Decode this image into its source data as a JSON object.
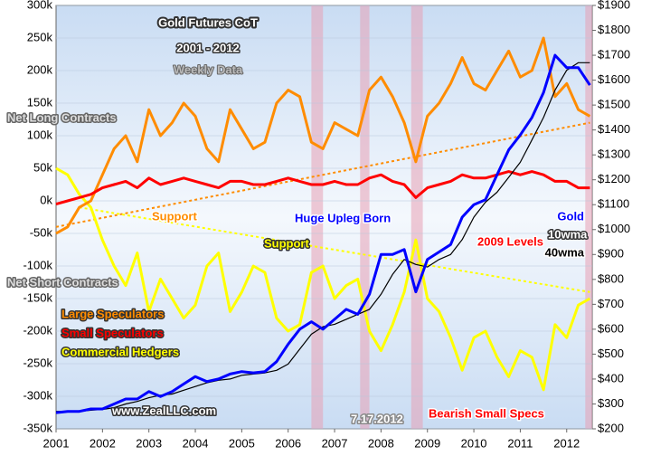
{
  "chart_data": {
    "type": "line",
    "title": "Gold Futures CoT",
    "subtitle": "2001 - 2012",
    "note": "Weekly Data",
    "annotations": [
      "Net Long Contracts",
      "Net Short Contracts",
      "Support",
      "Support",
      "Huge Upleg Born",
      "2009 Levels",
      "10wma",
      "www.ZealLLC.com",
      "7.17.2012",
      "Bearish Small Specs"
    ],
    "x": [
      2001,
      2001.25,
      2001.5,
      2001.75,
      2002,
      2002.25,
      2002.5,
      2002.75,
      2003,
      2003.25,
      2003.5,
      2003.75,
      2004,
      2004.25,
      2004.5,
      2004.75,
      2005,
      2005.25,
      2005.5,
      2005.75,
      2006,
      2006.25,
      2006.5,
      2006.75,
      2007,
      2007.25,
      2007.5,
      2007.75,
      2008,
      2008.25,
      2008.5,
      2008.75,
      2009,
      2009.25,
      2009.5,
      2009.75,
      2010,
      2010.25,
      2010.5,
      2010.75,
      2011,
      2011.25,
      2011.5,
      2011.75,
      2012,
      2012.25,
      2012.5
    ],
    "series": [
      {
        "name": "Large Speculators",
        "color": "#ff8c00",
        "values": [
          -50000,
          -40000,
          -10000,
          0,
          40000,
          80000,
          100000,
          60000,
          140000,
          100000,
          120000,
          150000,
          130000,
          80000,
          60000,
          140000,
          110000,
          80000,
          90000,
          150000,
          170000,
          160000,
          90000,
          80000,
          120000,
          110000,
          100000,
          170000,
          190000,
          160000,
          120000,
          60000,
          130000,
          150000,
          180000,
          220000,
          180000,
          170000,
          200000,
          230000,
          190000,
          200000,
          250000,
          160000,
          180000,
          140000,
          130000
        ]
      },
      {
        "name": "Small Speculators",
        "color": "#ff0000",
        "values": [
          -5000,
          0,
          5000,
          10000,
          20000,
          25000,
          30000,
          20000,
          35000,
          25000,
          30000,
          35000,
          30000,
          25000,
          20000,
          30000,
          30000,
          25000,
          25000,
          30000,
          35000,
          30000,
          25000,
          25000,
          30000,
          25000,
          25000,
          35000,
          40000,
          30000,
          25000,
          5000,
          20000,
          25000,
          30000,
          40000,
          35000,
          35000,
          40000,
          45000,
          40000,
          45000,
          40000,
          30000,
          30000,
          20000,
          20000
        ]
      },
      {
        "name": "Commercial Hedgers",
        "color": "#ffff00",
        "values": [
          50000,
          40000,
          10000,
          -10000,
          -60000,
          -100000,
          -130000,
          -80000,
          -170000,
          -120000,
          -150000,
          -180000,
          -160000,
          -100000,
          -80000,
          -170000,
          -140000,
          -100000,
          -110000,
          -180000,
          -200000,
          -190000,
          -110000,
          -100000,
          -150000,
          -130000,
          -120000,
          -200000,
          -230000,
          -190000,
          -140000,
          -60000,
          -150000,
          -170000,
          -210000,
          -260000,
          -210000,
          -200000,
          -240000,
          -270000,
          -230000,
          -240000,
          -290000,
          -190000,
          -210000,
          -160000,
          -150000
        ]
      },
      {
        "name": "Gold",
        "color": "#0000ff",
        "axis": "y2",
        "values": [
          265,
          270,
          270,
          280,
          280,
          300,
          320,
          320,
          350,
          330,
          350,
          380,
          410,
          390,
          400,
          420,
          430,
          425,
          430,
          470,
          540,
          600,
          630,
          600,
          640,
          680,
          660,
          740,
          900,
          900,
          920,
          750,
          880,
          910,
          940,
          1050,
          1100,
          1120,
          1220,
          1320,
          1380,
          1450,
          1550,
          1700,
          1650,
          1650,
          1580
        ]
      },
      {
        "name": "40wma",
        "color": "#000000",
        "axis": "y2",
        "values": [
          270,
          270,
          270,
          275,
          278,
          285,
          300,
          310,
          325,
          335,
          340,
          355,
          370,
          385,
          395,
          400,
          415,
          420,
          425,
          435,
          460,
          520,
          580,
          610,
          620,
          640,
          660,
          680,
          740,
          820,
          880,
          860,
          850,
          880,
          900,
          960,
          1050,
          1110,
          1150,
          1210,
          1270,
          1360,
          1450,
          1560,
          1640,
          1670,
          1670
        ]
      }
    ],
    "support_lines": [
      {
        "color": "#ff8c00",
        "x": [
          2001,
          2012.5
        ],
        "values": [
          -40000,
          120000
        ]
      },
      {
        "color": "#ffff00",
        "x": [
          2001.5,
          2012.5
        ],
        "values": [
          -10000,
          -140000
        ]
      }
    ],
    "highlight_spans": [
      [
        2006.5,
        2006.75
      ],
      [
        2007.55,
        2007.75
      ],
      [
        2008.65,
        2008.9
      ],
      [
        2012.4,
        2012.55
      ]
    ],
    "xlim": [
      2001,
      2012.55
    ],
    "xticks": [
      2001,
      2002,
      2003,
      2004,
      2005,
      2006,
      2007,
      2008,
      2009,
      2010,
      2011,
      2012
    ],
    "ylim": [
      -350000,
      300000
    ],
    "yticks": [
      {
        "value": -350000,
        "label": "-350k"
      },
      {
        "value": -300000,
        "label": "-300k"
      },
      {
        "value": -250000,
        "label": "-250k"
      },
      {
        "value": -200000,
        "label": "-200k"
      },
      {
        "value": -150000,
        "label": "-150k"
      },
      {
        "value": -100000,
        "label": "-100k"
      },
      {
        "value": -50000,
        "label": "-50k"
      },
      {
        "value": 0,
        "label": "0k"
      },
      {
        "value": 50000,
        "label": "50k"
      },
      {
        "value": 100000,
        "label": "100k"
      },
      {
        "value": 150000,
        "label": "150k"
      },
      {
        "value": 200000,
        "label": "200k"
      },
      {
        "value": 250000,
        "label": "250k"
      },
      {
        "value": 300000,
        "label": "300k"
      }
    ],
    "y2lim": [
      200,
      1900
    ],
    "y2ticks": [
      {
        "value": 200,
        "label": "$200"
      },
      {
        "value": 300,
        "label": "$300"
      },
      {
        "value": 400,
        "label": "$400"
      },
      {
        "value": 500,
        "label": "$500"
      },
      {
        "value": 600,
        "label": "$600"
      },
      {
        "value": 700,
        "label": "$700"
      },
      {
        "value": 800,
        "label": "$800"
      },
      {
        "value": 900,
        "label": "$900"
      },
      {
        "value": 1000,
        "label": "$1000"
      },
      {
        "value": 1100,
        "label": "$1100"
      },
      {
        "value": 1200,
        "label": "$1200"
      },
      {
        "value": 1300,
        "label": "$1300"
      },
      {
        "value": 1400,
        "label": "$1400"
      },
      {
        "value": 1500,
        "label": "$1500"
      },
      {
        "value": 1600,
        "label": "$1600"
      },
      {
        "value": 1700,
        "label": "$1700"
      },
      {
        "value": 1800,
        "label": "$1800"
      },
      {
        "value": 1900,
        "label": "$1900"
      }
    ],
    "grid": true
  }
}
